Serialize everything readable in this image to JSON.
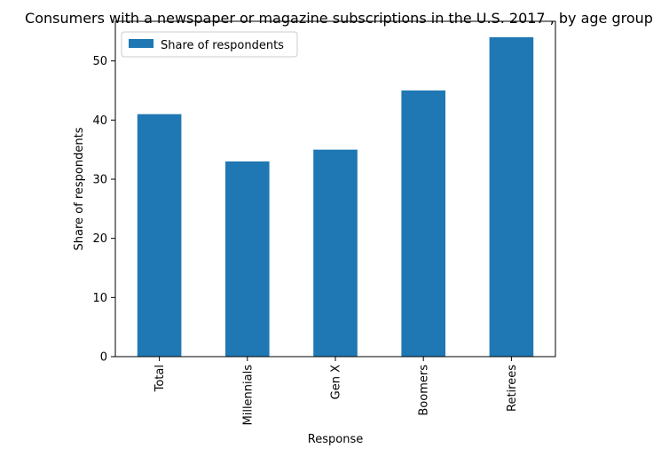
{
  "chart_data": {
    "type": "bar",
    "title": "Consumers with a newspaper or magazine subscriptions in the U.S. 2017 , by age group",
    "xlabel": "Response",
    "ylabel": "Share of respondents",
    "categories": [
      "Total",
      "Millennials",
      "Gen X",
      "Boomers",
      "Retirees"
    ],
    "series": [
      {
        "name": "Share of respondents",
        "values": [
          41,
          33,
          35,
          45,
          54
        ],
        "color": "#1f77b4"
      }
    ],
    "ylim": [
      0,
      56.7
    ],
    "yticks": [
      0,
      10,
      20,
      30,
      40,
      50
    ],
    "grid": false,
    "legend": "upper-left"
  }
}
